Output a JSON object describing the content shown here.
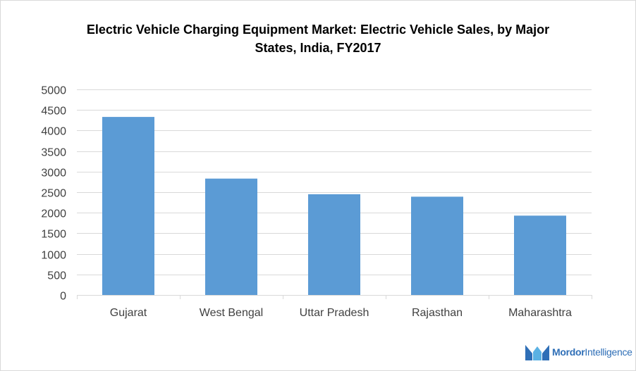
{
  "chart_data": {
    "type": "bar",
    "title": "Electric Vehicle Charging Equipment Market: Electric Vehicle Sales, by Major States, India, FY2017",
    "categories": [
      "Gujarat",
      "West Bengal",
      "Uttar Pradesh",
      "Rajasthan",
      "Maharashtra"
    ],
    "values": [
      4330,
      2830,
      2450,
      2390,
      1930
    ],
    "ylim": [
      0,
      5000
    ],
    "yticks": [
      0,
      500,
      1000,
      1500,
      2000,
      2500,
      3000,
      3500,
      4000,
      4500,
      5000
    ],
    "grid": true,
    "bar_color": "#5b9bd5",
    "grid_color": "#d9d9d9"
  },
  "branding": {
    "logo_name": "mordor-intelligence-logo",
    "logo_text_a": "Mordor",
    "logo_text_b": "Intelligence",
    "logo_color": "#2f6fb7"
  }
}
